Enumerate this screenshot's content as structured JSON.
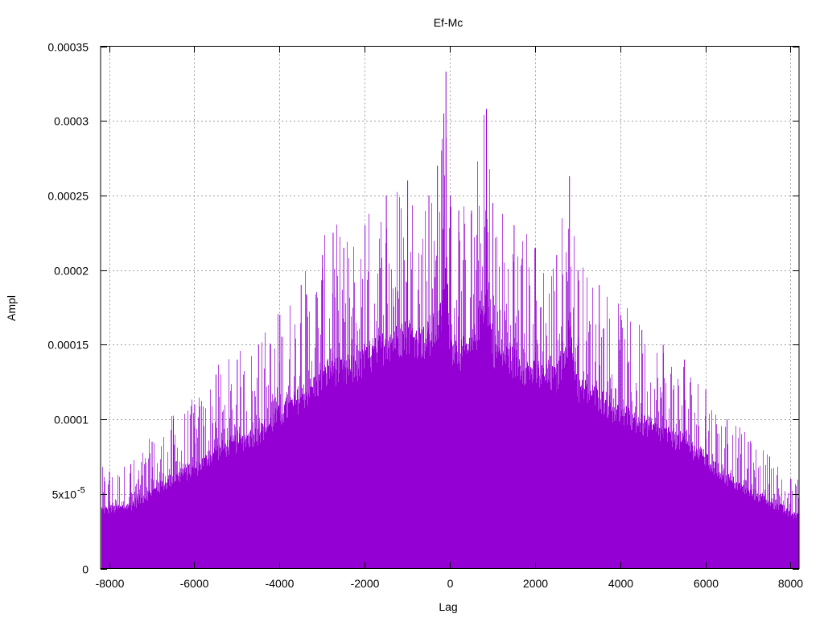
{
  "chart_data": {
    "type": "bar",
    "title": "Ef-Mc",
    "xlabel": "Lag",
    "ylabel": "Ampl",
    "xlim": [
      -8200,
      8200
    ],
    "ylim": [
      0,
      0.00035
    ],
    "grid": true,
    "legend": "none",
    "x_ticks": [
      -8000,
      -6000,
      -4000,
      -2000,
      0,
      2000,
      4000,
      6000,
      8000
    ],
    "x_tick_labels": [
      "-8000",
      "-6000",
      "-4000",
      "-2000",
      "0",
      "2000",
      "4000",
      "6000",
      "8000"
    ],
    "y_ticks": [
      0,
      5e-05,
      0.0001,
      0.00015,
      0.0002,
      0.00025,
      0.0003,
      0.00035
    ],
    "y_tick_labels": [
      "0",
      "5x10",
      "0.0001",
      "0.00015",
      "0.0002",
      "0.00025",
      "0.0003",
      "0.00035"
    ],
    "y_tick_superscript": "-5",
    "series_color": "#9400d3",
    "series": [
      {
        "x": [
          -8000,
          -7500,
          -7000,
          -6500,
          -6000,
          -5500,
          -5000,
          -4500,
          -4000,
          -3500,
          -3000,
          -2750,
          -2500,
          -2000,
          -1500,
          -1000,
          -500,
          -300,
          -200,
          -150,
          -100,
          0,
          200,
          500,
          850,
          1000,
          1500,
          2000,
          2500,
          2800,
          3000,
          3500,
          4000,
          4500,
          5000,
          5500,
          6000,
          6500,
          7000,
          7500,
          8000
        ],
        "envelope": [
          6.5e-05,
          7e-05,
          8.5e-05,
          0.0001,
          0.00011,
          0.00013,
          0.00014,
          0.00015,
          0.00017,
          0.00019,
          0.00021,
          0.000225,
          0.000215,
          0.00023,
          0.00025,
          0.00026,
          0.00025,
          0.00027,
          0.00028,
          0.000305,
          0.000333,
          0.00025,
          0.00024,
          0.00024,
          0.000308,
          0.000245,
          0.00023,
          0.000215,
          0.00021,
          0.000263,
          0.0002,
          0.00019,
          0.00017,
          0.00016,
          0.00015,
          0.00014,
          0.00012,
          0.0001,
          8.5e-05,
          7.5e-05,
          6e-05
        ]
      }
    ]
  }
}
